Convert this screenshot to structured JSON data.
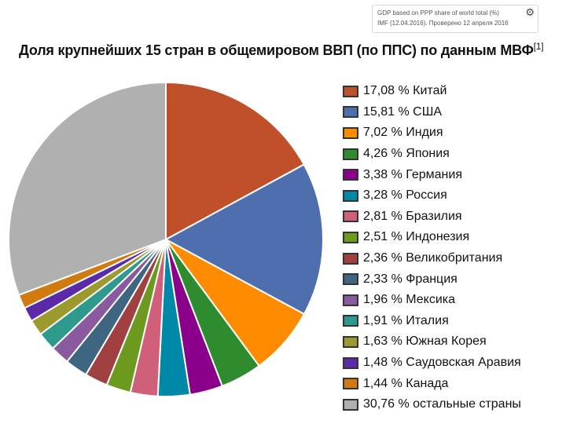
{
  "tooltip": {
    "line1": "GDP based on PPP share of world total (%)",
    "line2": "IMF (12.04.2016). Проверено 12 апреля 2016",
    "icon": "gear-icon"
  },
  "chart_data": {
    "type": "pie",
    "title": "Доля крупнейших 15 стран в общемировом ВВП (по ППС) по данным МВФ",
    "title_ref": "[1]",
    "legend_position": "right",
    "start_angle_deg": 0,
    "direction": "clockwise",
    "slices": [
      {
        "value": 17.08,
        "label": "17,08 % Китай",
        "color": "#c0502a"
      },
      {
        "value": 15.81,
        "label": "15,81 % США",
        "color": "#4e6ead"
      },
      {
        "value": 7.02,
        "label": "7,02 % Индия",
        "color": "#ff8c00"
      },
      {
        "value": 4.26,
        "label": "4,26 % Япония",
        "color": "#2e8b2e"
      },
      {
        "value": 3.38,
        "label": "3,38 % Германия",
        "color": "#8b008b"
      },
      {
        "value": 3.28,
        "label": "3,28 % Россия",
        "color": "#0088a8"
      },
      {
        "value": 2.81,
        "label": "2,81 % Бразилия",
        "color": "#d0607a"
      },
      {
        "value": 2.51,
        "label": "2,51 % Индонезия",
        "color": "#6b9a1e"
      },
      {
        "value": 2.36,
        "label": "2,36 % Великобритания",
        "color": "#a04040"
      },
      {
        "value": 2.33,
        "label": "2,33 % Франция",
        "color": "#3e6680"
      },
      {
        "value": 1.96,
        "label": "1,96 % Мексика",
        "color": "#8a5a9e"
      },
      {
        "value": 1.91,
        "label": "1,91 % Италия",
        "color": "#2e9a8e"
      },
      {
        "value": 1.63,
        "label": "1,63 % Южная Корея",
        "color": "#9a9a2e"
      },
      {
        "value": 1.48,
        "label": "1,48 % Саудовская Аравия",
        "color": "#5a2aa8"
      },
      {
        "value": 1.44,
        "label": "1,44 % Канада",
        "color": "#d07a10"
      },
      {
        "value": 30.76,
        "label": "30,76 % остальные страны",
        "color": "#b0b0b0"
      }
    ]
  }
}
